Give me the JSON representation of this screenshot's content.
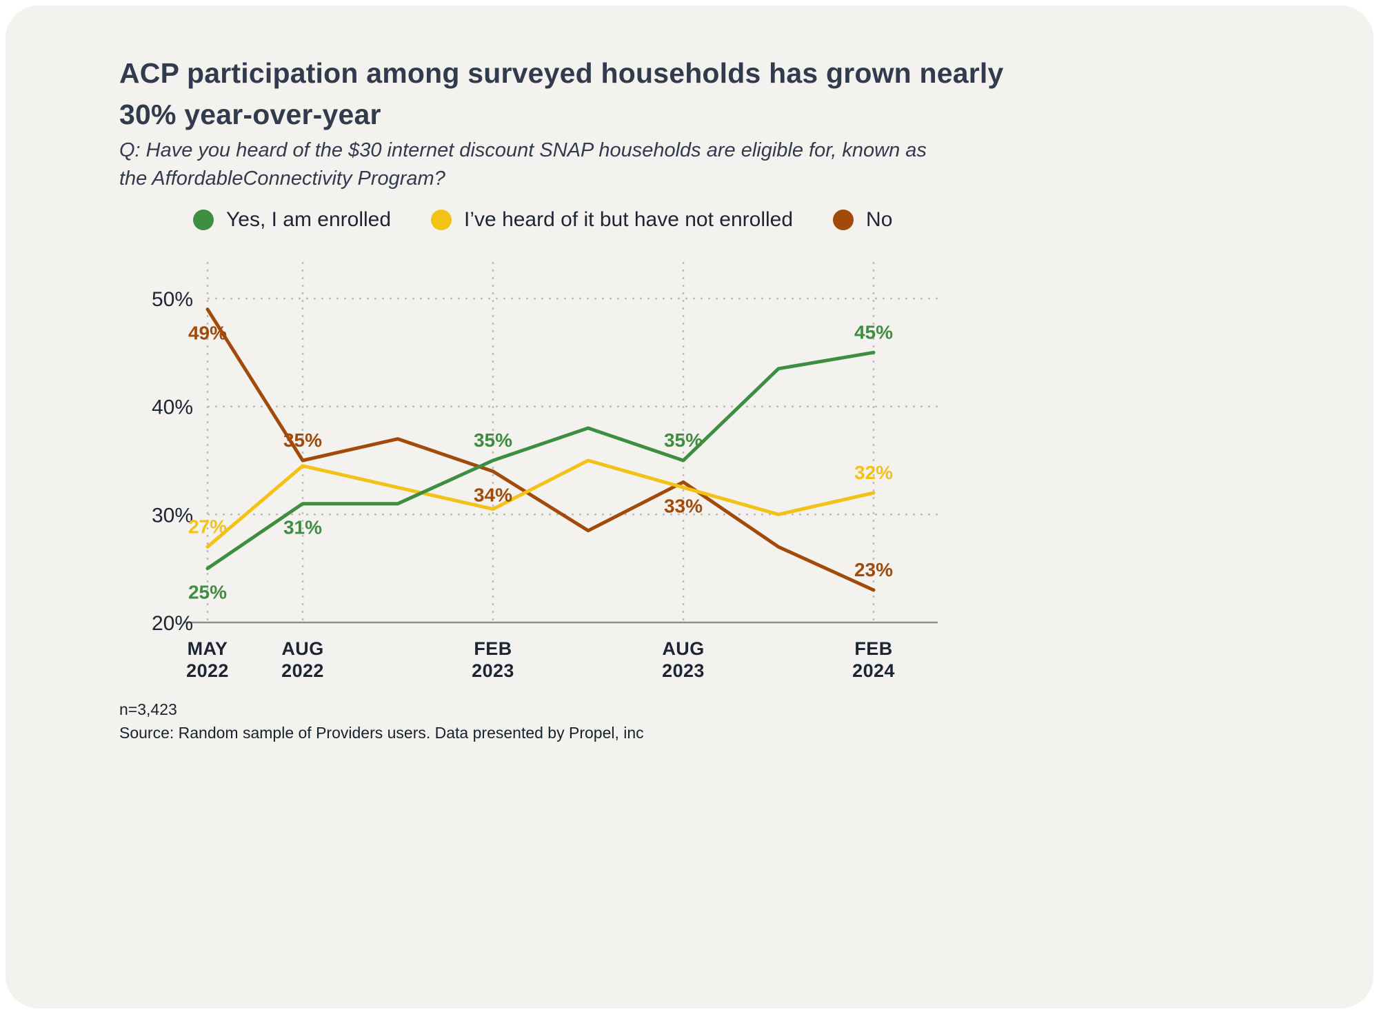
{
  "card": {
    "title": "ACP participation among surveyed households has grown nearly 30% year-over-year",
    "subtitle": "Q: Have you heard of the $30 internet discount SNAP households are eligible for, known as the AffordableConnectivity Program?",
    "footnote_n": "n=3,423",
    "source": "Source: Random sample of Providers users. Data presented by Propel, inc"
  },
  "colors": {
    "background": "#f4f2ee",
    "title_text": "#323a4d",
    "green": "#3e8e41",
    "yellow": "#f3c216",
    "brown": "#a24a0a"
  },
  "legend": [
    {
      "label": "Yes, I am enrolled",
      "color": "#3e8e41"
    },
    {
      "label": "I’ve heard of it but have not enrolled",
      "color": "#f3c216"
    },
    {
      "label": "No",
      "color": "#a24a0a"
    }
  ],
  "chart_data": {
    "type": "line",
    "title": "ACP participation among surveyed households has grown nearly 30% year-over-year",
    "xlabel": "",
    "ylabel": "",
    "ylim": [
      20,
      50
    ],
    "y_ticks": [
      20,
      30,
      40,
      50
    ],
    "grid": "dashed",
    "legend_position": "top",
    "x_point_count": 8,
    "x_ticks": [
      {
        "index": 0,
        "line1": "MAY",
        "line2": "2022"
      },
      {
        "index": 1,
        "line1": "AUG",
        "line2": "2022"
      },
      {
        "index": 3,
        "line1": "FEB",
        "line2": "2023"
      },
      {
        "index": 5,
        "line1": "AUG",
        "line2": "2023"
      },
      {
        "index": 7,
        "line1": "FEB",
        "line2": "2024"
      }
    ],
    "series": [
      {
        "name": "Yes, I am enrolled",
        "color": "#3e8e41",
        "values": [
          25,
          31,
          31,
          35,
          38,
          35,
          43.5,
          45
        ],
        "labels": [
          {
            "index": 0,
            "text": "25%",
            "pos": "below"
          },
          {
            "index": 1,
            "text": "31%",
            "pos": "below"
          },
          {
            "index": 3,
            "text": "35%",
            "pos": "above"
          },
          {
            "index": 5,
            "text": "35%",
            "pos": "above"
          },
          {
            "index": 7,
            "text": "45%",
            "pos": "above"
          }
        ]
      },
      {
        "name": "I’ve heard of it but have not enrolled",
        "color": "#f3c216",
        "values": [
          27,
          34.5,
          32.5,
          30.5,
          35,
          32.5,
          30,
          32
        ],
        "labels": [
          {
            "index": 0,
            "text": "27%",
            "pos": "above"
          },
          {
            "index": 7,
            "text": "32%",
            "pos": "above"
          }
        ]
      },
      {
        "name": "No",
        "color": "#a24a0a",
        "values": [
          49,
          35,
          37,
          34,
          28.5,
          33,
          27,
          23
        ],
        "labels": [
          {
            "index": 0,
            "text": "49%",
            "pos": "below"
          },
          {
            "index": 1,
            "text": "35%",
            "pos": "above"
          },
          {
            "index": 3,
            "text": "34%",
            "pos": "below"
          },
          {
            "index": 5,
            "text": "33%",
            "pos": "below"
          },
          {
            "index": 7,
            "text": "23%",
            "pos": "above"
          }
        ]
      }
    ]
  }
}
